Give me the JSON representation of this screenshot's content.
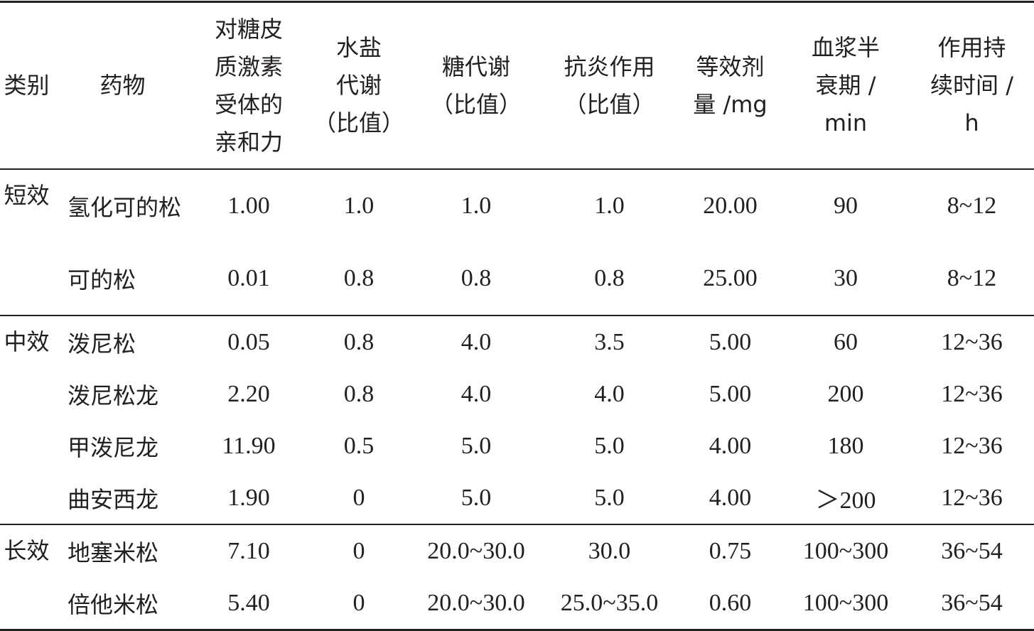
{
  "table": {
    "header": [
      "类别",
      "药物",
      "对糖皮\n质激素\n受体的\n亲和力",
      "水盐\n代谢\n（比值）",
      "糖代谢\n（比值）",
      "抗炎作用\n（比值）",
      "等效剂\n量 /mg",
      "血浆半\n衰期 /\nmin",
      "作用持\n续时间 /\nh"
    ],
    "groups": [
      {
        "category": "短效",
        "rows": [
          [
            "氢化可的松",
            "1.00",
            "1.0",
            "1.0",
            "1.0",
            "20.00",
            "90",
            "8~12"
          ],
          [
            "可的松",
            "0.01",
            "0.8",
            "0.8",
            "0.8",
            "25.00",
            "30",
            "8~12"
          ]
        ]
      },
      {
        "category": "中效",
        "rows": [
          [
            "泼尼松",
            "0.05",
            "0.8",
            "4.0",
            "3.5",
            "5.00",
            "60",
            "12~36"
          ],
          [
            "泼尼松龙",
            "2.20",
            "0.8",
            "4.0",
            "4.0",
            "5.00",
            "200",
            "12~36"
          ],
          [
            "甲泼尼龙",
            "11.90",
            "0.5",
            "5.0",
            "5.0",
            "4.00",
            "180",
            "12~36"
          ],
          [
            "曲安西龙",
            "1.90",
            "0",
            "5.0",
            "5.0",
            "4.00",
            "＞200",
            "12~36"
          ]
        ]
      },
      {
        "category": "长效",
        "rows": [
          [
            "地塞米松",
            "7.10",
            "0",
            "20.0~30.0",
            "30.0",
            "0.75",
            "100~300",
            "36~54"
          ],
          [
            "倍他米松",
            "5.40",
            "0",
            "20.0~30.0",
            "25.0~35.0",
            "0.60",
            "100~300",
            "36~54"
          ]
        ]
      }
    ]
  }
}
